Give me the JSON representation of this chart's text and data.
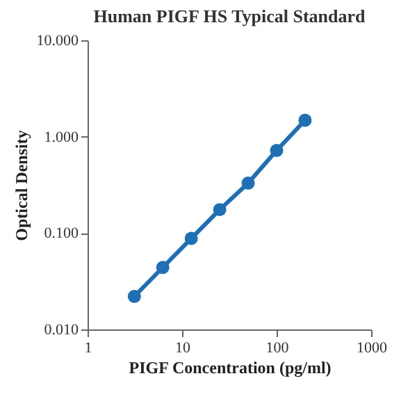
{
  "chart_data": {
    "type": "line",
    "title": "Human PIGF HS Typical Standard",
    "xlabel": "PIGF  Concentration (pg/ml)",
    "ylabel": "Optical Density",
    "x": [
      3.125,
      6.25,
      12.5,
      25,
      50,
      100,
      200
    ],
    "series": [
      {
        "color": "#1f6fb5",
        "values": [
          0.022,
          0.044,
          0.088,
          0.175,
          0.33,
          0.72,
          1.48
        ]
      }
    ],
    "log": "xy",
    "xlim": [
      1,
      1000
    ],
    "ylim": [
      0.01,
      10
    ],
    "xticks": [
      1,
      10,
      100,
      1000
    ],
    "yticks": [
      {
        "value": 0.01,
        "label": "0.010"
      },
      {
        "value": 0.1,
        "label": "0.100"
      },
      {
        "value": 1,
        "label": "1.000"
      },
      {
        "value": 10,
        "label": "10.000"
      }
    ],
    "grid": false,
    "marker": "circle",
    "line_style": "solid"
  }
}
